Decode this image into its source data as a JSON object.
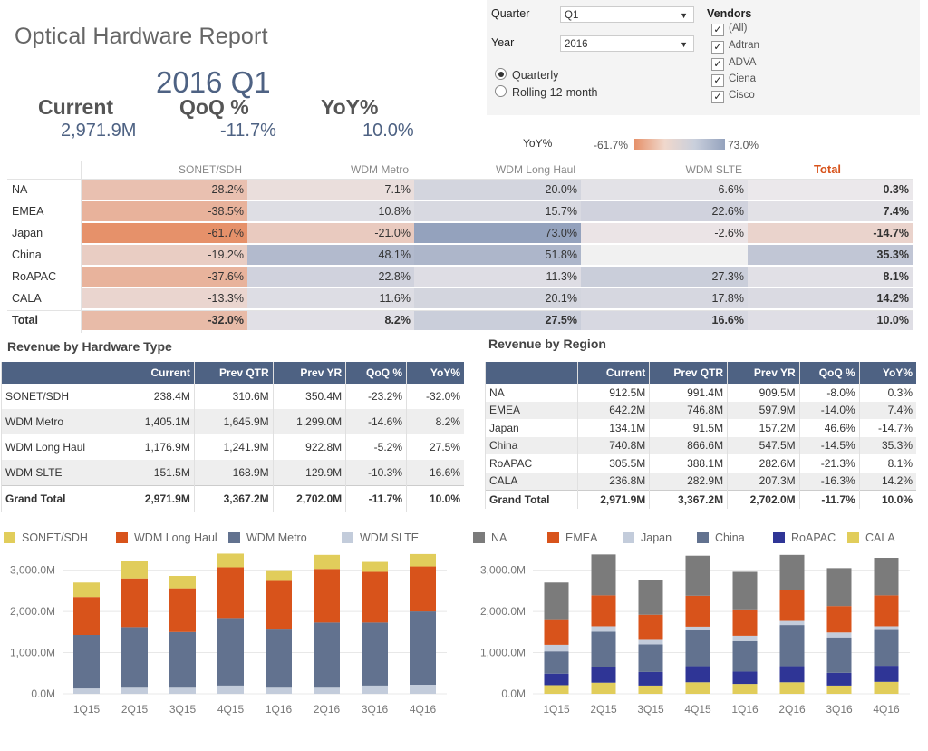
{
  "header": {
    "title": "Optical Hardware Report",
    "period": "2016 Q1"
  },
  "kpis": {
    "current": {
      "label": "Current",
      "value": "2,971.9M"
    },
    "qoq": {
      "label": "QoQ %",
      "value": "-11.7%"
    },
    "yoy": {
      "label": "YoY%",
      "value": "10.0%"
    }
  },
  "filters": {
    "quarter": {
      "label": "Quarter",
      "value": "Q1"
    },
    "year": {
      "label": "Year",
      "value": "2016"
    },
    "radios": [
      {
        "label": "Quarterly",
        "checked": true
      },
      {
        "label": "Rolling 12-month",
        "checked": false
      }
    ],
    "vendors": {
      "label": "Vendors",
      "items": [
        "(All)",
        "Adtran",
        "ADVA",
        "Ciena",
        "Cisco"
      ]
    }
  },
  "scale": {
    "label": "YoY%",
    "min": "-61.7%",
    "max": "73.0%",
    "min_color": "#e6916a",
    "max_color": "#94a2bd"
  },
  "heat": {
    "columns": [
      "SONET/SDH",
      "WDM Metro",
      "WDM Long Haul",
      "WDM SLTE",
      "Total"
    ],
    "rows": [
      {
        "label": "NA",
        "values": [
          "-28.2%",
          "-7.1%",
          "20.0%",
          "6.6%",
          "0.3%"
        ],
        "nums": [
          -28.2,
          -7.1,
          20.0,
          6.6,
          0.3
        ]
      },
      {
        "label": "EMEA",
        "values": [
          "-38.5%",
          "10.8%",
          "15.7%",
          "22.6%",
          "7.4%"
        ],
        "nums": [
          -38.5,
          10.8,
          15.7,
          22.6,
          7.4
        ]
      },
      {
        "label": "Japan",
        "values": [
          "-61.7%",
          "-21.0%",
          "73.0%",
          "-2.6%",
          "-14.7%"
        ],
        "nums": [
          -61.7,
          -21.0,
          73.0,
          -2.6,
          -14.7
        ]
      },
      {
        "label": "China",
        "values": [
          "-19.2%",
          "48.1%",
          "51.8%",
          "",
          "35.3%"
        ],
        "nums": [
          -19.2,
          48.1,
          51.8,
          null,
          35.3
        ]
      },
      {
        "label": "RoAPAC",
        "values": [
          "-37.6%",
          "22.8%",
          "11.3%",
          "27.3%",
          "8.1%"
        ],
        "nums": [
          -37.6,
          22.8,
          11.3,
          27.3,
          8.1
        ]
      },
      {
        "label": "CALA",
        "values": [
          "-13.3%",
          "11.6%",
          "20.1%",
          "17.8%",
          "14.2%"
        ],
        "nums": [
          -13.3,
          11.6,
          20.1,
          17.8,
          14.2
        ]
      },
      {
        "label": "Total",
        "values": [
          "-32.0%",
          "8.2%",
          "27.5%",
          "16.6%",
          "10.0%"
        ],
        "nums": [
          -32.0,
          8.2,
          27.5,
          16.6,
          10.0
        ]
      }
    ]
  },
  "hw_table": {
    "title": "Revenue by Hardware Type",
    "headers": [
      "",
      "Current",
      "Prev QTR",
      "Prev YR",
      "QoQ %",
      "YoY%"
    ],
    "rows": [
      [
        "SONET/SDH",
        "238.4M",
        "310.6M",
        "350.4M",
        "-23.2%",
        "-32.0%"
      ],
      [
        "WDM Metro",
        "1,405.1M",
        "1,645.9M",
        "1,299.0M",
        "-14.6%",
        "8.2%"
      ],
      [
        "WDM Long Haul",
        "1,176.9M",
        "1,241.9M",
        "922.8M",
        "-5.2%",
        "27.5%"
      ],
      [
        "WDM SLTE",
        "151.5M",
        "168.9M",
        "129.9M",
        "-10.3%",
        "16.6%"
      ],
      [
        "Grand Total",
        "2,971.9M",
        "3,367.2M",
        "2,702.0M",
        "-11.7%",
        "10.0%"
      ]
    ]
  },
  "region_table": {
    "title": "Revenue by Region",
    "headers": [
      "",
      "Current",
      "Prev QTR",
      "Prev YR",
      "QoQ %",
      "YoY%"
    ],
    "rows": [
      [
        "NA",
        "912.5M",
        "991.4M",
        "909.5M",
        "-8.0%",
        "0.3%"
      ],
      [
        "EMEA",
        "642.2M",
        "746.8M",
        "597.9M",
        "-14.0%",
        "7.4%"
      ],
      [
        "Japan",
        "134.1M",
        "91.5M",
        "157.2M",
        "46.6%",
        "-14.7%"
      ],
      [
        "China",
        "740.8M",
        "866.6M",
        "547.5M",
        "-14.5%",
        "35.3%"
      ],
      [
        "RoAPAC",
        "305.5M",
        "388.1M",
        "282.6M",
        "-21.3%",
        "8.1%"
      ],
      [
        "CALA",
        "236.8M",
        "282.9M",
        "207.3M",
        "-16.3%",
        "14.2%"
      ],
      [
        "Grand Total",
        "2,971.9M",
        "3,367.2M",
        "2,702.0M",
        "-11.7%",
        "10.0%"
      ]
    ]
  },
  "chart_data": [
    {
      "type": "bar",
      "stacked": true,
      "categories": [
        "1Q15",
        "2Q15",
        "3Q15",
        "4Q15",
        "1Q16",
        "2Q16",
        "3Q16",
        "4Q16"
      ],
      "y_ticks": [
        "3,000.0M",
        "2,000.0M",
        "1,000.0M",
        "0.0M"
      ],
      "ylim": [
        0,
        3300
      ],
      "legend": "top",
      "series": [
        {
          "name": "SONET/SDH",
          "color": "#e1cd5b",
          "values": [
            350,
            420,
            300,
            330,
            260,
            340,
            240,
            300
          ]
        },
        {
          "name": "WDM Long Haul",
          "color": "#d8531b",
          "values": [
            920,
            1180,
            1060,
            1230,
            1180,
            1300,
            1230,
            1090
          ]
        },
        {
          "name": "WDM Metro",
          "color": "#62728f",
          "values": [
            1300,
            1450,
            1330,
            1640,
            1390,
            1560,
            1530,
            1780
          ]
        },
        {
          "name": "WDM SLTE",
          "color": "#c3ccdb",
          "values": [
            130,
            170,
            170,
            200,
            170,
            170,
            200,
            220
          ]
        }
      ],
      "draw_order": [
        "WDM SLTE",
        "WDM Metro",
        "WDM Long Haul",
        "SONET/SDH"
      ]
    },
    {
      "type": "bar",
      "stacked": true,
      "categories": [
        "1Q15",
        "2Q15",
        "3Q15",
        "4Q15",
        "1Q16",
        "2Q16",
        "3Q16",
        "4Q16"
      ],
      "y_ticks": [
        "3,000.0M",
        "2,000.0M",
        "1,000.0M",
        "0.0M"
      ],
      "ylim": [
        0,
        3300
      ],
      "legend": "top",
      "series": [
        {
          "name": "NA",
          "color": "#7b7b7b",
          "values": [
            910,
            990,
            830,
            970,
            910,
            840,
            920,
            910
          ]
        },
        {
          "name": "EMEA",
          "color": "#d8531b",
          "values": [
            600,
            750,
            610,
            750,
            640,
            760,
            640,
            750
          ]
        },
        {
          "name": "Japan",
          "color": "#c3ccdb",
          "values": [
            160,
            130,
            110,
            90,
            130,
            100,
            120,
            90
          ]
        },
        {
          "name": "China",
          "color": "#62728f",
          "values": [
            540,
            850,
            670,
            870,
            740,
            1000,
            860,
            870
          ]
        },
        {
          "name": "RoAPAC",
          "color": "#2f3596",
          "values": [
            280,
            390,
            330,
            390,
            300,
            390,
            310,
            390
          ]
        },
        {
          "name": "CALA",
          "color": "#e1cd5b",
          "values": [
            210,
            270,
            200,
            280,
            240,
            280,
            200,
            290
          ]
        }
      ],
      "draw_order": [
        "CALA",
        "RoAPAC",
        "China",
        "Japan",
        "EMEA",
        "NA"
      ]
    }
  ]
}
